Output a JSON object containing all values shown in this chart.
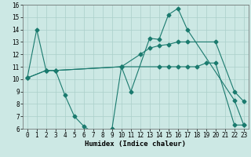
{
  "xlabel": "Humidex (Indice chaleur)",
  "xlim": [
    -0.5,
    23.5
  ],
  "ylim": [
    6,
    16
  ],
  "yticks": [
    6,
    7,
    8,
    9,
    10,
    11,
    12,
    13,
    14,
    15,
    16
  ],
  "xticks": [
    0,
    1,
    2,
    3,
    4,
    5,
    6,
    7,
    8,
    9,
    10,
    11,
    12,
    13,
    14,
    15,
    16,
    17,
    18,
    19,
    20,
    21,
    22,
    23
  ],
  "line_color": "#1a7a6e",
  "bg_color": "#cce8e4",
  "grid_color": "#aacfca",
  "line1_x": [
    0,
    1,
    2,
    3,
    4,
    5,
    6,
    7,
    8,
    9,
    10,
    11,
    13,
    14,
    15,
    16,
    17,
    22,
    23
  ],
  "line1_y": [
    10.1,
    14.0,
    10.7,
    10.7,
    8.7,
    7.0,
    6.2,
    5.7,
    5.7,
    6.0,
    11.0,
    9.0,
    13.3,
    13.2,
    15.2,
    15.7,
    14.0,
    8.3,
    6.3
  ],
  "line2_x": [
    0,
    2,
    3,
    10,
    12,
    13,
    14,
    15,
    16,
    17,
    20,
    22,
    23
  ],
  "line2_y": [
    10.1,
    10.7,
    10.7,
    11.0,
    12.0,
    12.5,
    12.7,
    12.8,
    13.0,
    13.0,
    13.0,
    9.0,
    8.2
  ],
  "line3_x": [
    0,
    2,
    3,
    10,
    14,
    15,
    16,
    17,
    18,
    19,
    20,
    22,
    23
  ],
  "line3_y": [
    10.1,
    10.7,
    10.7,
    11.0,
    11.0,
    11.0,
    11.0,
    11.0,
    11.0,
    11.3,
    11.3,
    6.3,
    6.3
  ],
  "tick_fontsize": 5.5,
  "xlabel_fontsize": 6.5,
  "marker_size": 2.5
}
